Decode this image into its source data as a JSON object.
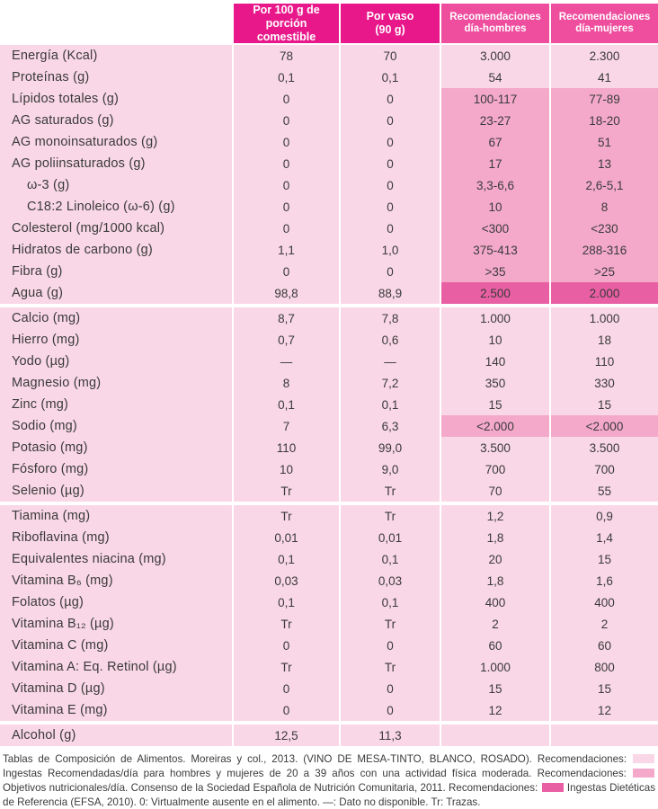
{
  "colors": {
    "header_magenta": "#e8188b",
    "header_pink": "#ef4d9e",
    "row_bg": "#f9d7e6",
    "highlight_mid": "#f4a9cb",
    "highlight_dark": "#e85fa4"
  },
  "table": {
    "header": {
      "per100": "Por 100 g de\nporción comestible",
      "vaso": "Por vaso\n(90 g)",
      "men": "Recomendaciones\ndía-hombres",
      "women": "Recomendaciones\ndía-mujeres"
    },
    "sections": [
      {
        "rows": [
          {
            "name": "Energía (Kcal)",
            "per100": "78",
            "vaso": "70",
            "men": "3.000",
            "women": "2.300",
            "hl": "none",
            "indent": 0
          },
          {
            "name": "Proteínas (g)",
            "per100": "0,1",
            "vaso": "0,1",
            "men": "54",
            "women": "41",
            "hl": "none",
            "indent": 0
          },
          {
            "name": "Lípidos totales (g)",
            "per100": "0",
            "vaso": "0",
            "men": "100-117",
            "women": "77-89",
            "hl": "mid",
            "indent": 0
          },
          {
            "name": "AG saturados (g)",
            "per100": "0",
            "vaso": "0",
            "men": "23-27",
            "women": "18-20",
            "hl": "mid",
            "indent": 0
          },
          {
            "name": "AG monoinsaturados (g)",
            "per100": "0",
            "vaso": "0",
            "men": "67",
            "women": "51",
            "hl": "mid",
            "indent": 0
          },
          {
            "name": "AG poliinsaturados (g)",
            "per100": "0",
            "vaso": "0",
            "men": "17",
            "women": "13",
            "hl": "mid",
            "indent": 0
          },
          {
            "name": "ω-3 (g)",
            "per100": "0",
            "vaso": "0",
            "men": "3,3-6,6",
            "women": "2,6-5,1",
            "hl": "mid",
            "indent": 1
          },
          {
            "name": "C18:2 Linoleico (ω-6) (g)",
            "per100": "0",
            "vaso": "0",
            "men": "10",
            "women": "8",
            "hl": "mid",
            "indent": 1
          },
          {
            "name": "Colesterol (mg/1000 kcal)",
            "per100": "0",
            "vaso": "0",
            "men": "<300",
            "women": "<230",
            "hl": "mid",
            "indent": 0
          },
          {
            "name": "Hidratos de carbono (g)",
            "per100": "1,1",
            "vaso": "1,0",
            "men": "375-413",
            "women": "288-316",
            "hl": "mid",
            "indent": 0
          },
          {
            "name": "Fibra (g)",
            "per100": "0",
            "vaso": "0",
            "men": ">35",
            "women": ">25",
            "hl": "mid",
            "indent": 0
          },
          {
            "name": "Agua (g)",
            "per100": "98,8",
            "vaso": "88,9",
            "men": "2.500",
            "women": "2.000",
            "hl": "dark",
            "indent": 0
          }
        ]
      },
      {
        "rows": [
          {
            "name": "Calcio (mg)",
            "per100": "8,7",
            "vaso": "7,8",
            "men": "1.000",
            "women": "1.000",
            "hl": "none",
            "indent": 0
          },
          {
            "name": "Hierro (mg)",
            "per100": "0,7",
            "vaso": "0,6",
            "men": "10",
            "women": "18",
            "hl": "none",
            "indent": 0
          },
          {
            "name": "Yodo (µg)",
            "per100": "—",
            "vaso": "—",
            "men": "140",
            "women": "110",
            "hl": "none",
            "indent": 0
          },
          {
            "name": "Magnesio (mg)",
            "per100": "8",
            "vaso": "7,2",
            "men": "350",
            "women": "330",
            "hl": "none",
            "indent": 0
          },
          {
            "name": "Zinc (mg)",
            "per100": "0,1",
            "vaso": "0,1",
            "men": "15",
            "women": "15",
            "hl": "none",
            "indent": 0
          },
          {
            "name": "Sodio (mg)",
            "per100": "7",
            "vaso": "6,3",
            "men": "<2.000",
            "women": "<2.000",
            "hl": "mid",
            "indent": 0
          },
          {
            "name": "Potasio (mg)",
            "per100": "110",
            "vaso": "99,0",
            "men": "3.500",
            "women": "3.500",
            "hl": "none",
            "indent": 0
          },
          {
            "name": "Fósforo (mg)",
            "per100": "10",
            "vaso": "9,0",
            "men": "700",
            "women": "700",
            "hl": "none",
            "indent": 0
          },
          {
            "name": "Selenio (µg)",
            "per100": "Tr",
            "vaso": "Tr",
            "men": "70",
            "women": "55",
            "hl": "none",
            "indent": 0
          }
        ]
      },
      {
        "rows": [
          {
            "name": "Tiamina (mg)",
            "per100": "Tr",
            "vaso": "Tr",
            "men": "1,2",
            "women": "0,9",
            "hl": "none",
            "indent": 0
          },
          {
            "name": "Riboflavina (mg)",
            "per100": "0,01",
            "vaso": "0,01",
            "men": "1,8",
            "women": "1,4",
            "hl": "none",
            "indent": 0
          },
          {
            "name": "Equivalentes niacina (mg)",
            "per100": "0,1",
            "vaso": "0,1",
            "men": "20",
            "women": "15",
            "hl": "none",
            "indent": 0
          },
          {
            "name": "Vitamina B₆ (mg)",
            "per100": "0,03",
            "vaso": "0,03",
            "men": "1,8",
            "women": "1,6",
            "hl": "none",
            "indent": 0
          },
          {
            "name": "Folatos (µg)",
            "per100": "0,1",
            "vaso": "0,1",
            "men": "400",
            "women": "400",
            "hl": "none",
            "indent": 0
          },
          {
            "name": "Vitamina B₁₂ (µg)",
            "per100": "Tr",
            "vaso": "Tr",
            "men": "2",
            "women": "2",
            "hl": "none",
            "indent": 0
          },
          {
            "name": "Vitamina C (mg)",
            "per100": "0",
            "vaso": "0",
            "men": "60",
            "women": "60",
            "hl": "none",
            "indent": 0
          },
          {
            "name": "Vitamina A: Eq. Retinol (µg)",
            "per100": "Tr",
            "vaso": "Tr",
            "men": "1.000",
            "women": "800",
            "hl": "none",
            "indent": 0
          },
          {
            "name": "Vitamina D (µg)",
            "per100": "0",
            "vaso": "0",
            "men": "15",
            "women": "15",
            "hl": "none",
            "indent": 0
          },
          {
            "name": "Vitamina E (mg)",
            "per100": "0",
            "vaso": "0",
            "men": "12",
            "women": "12",
            "hl": "none",
            "indent": 0
          }
        ]
      },
      {
        "rows": [
          {
            "name": "Alcohol (g)",
            "per100": "12,5",
            "vaso": "11,3",
            "men": "",
            "women": "",
            "hl": "none",
            "indent": 0
          }
        ]
      }
    ]
  },
  "footer": {
    "parts": [
      {
        "text": "Tablas de Composición de Alimentos. Moreiras y col., 2013. (VINO DE MESA-TINTO, BLANCO, ROSADO). Recomendaciones: "
      },
      {
        "swatch": "light"
      },
      {
        "text": " Ingestas Recomendadas/día para hombres y mujeres de 20 a 39 años con una actividad física moderada. Recomendaciones: "
      },
      {
        "swatch": "mid"
      },
      {
        "text": " Objetivos nutricionales/día. Consenso de la Sociedad Española de Nutrición Comunitaria, 2011. Recomendaciones: "
      },
      {
        "swatch": "magenta"
      },
      {
        "text": " Ingestas Dietéticas de Referencia (EFSA, 2010). 0: Virtualmente ausente en el alimento. —: Dato no disponible. Tr: Trazas."
      }
    ]
  }
}
